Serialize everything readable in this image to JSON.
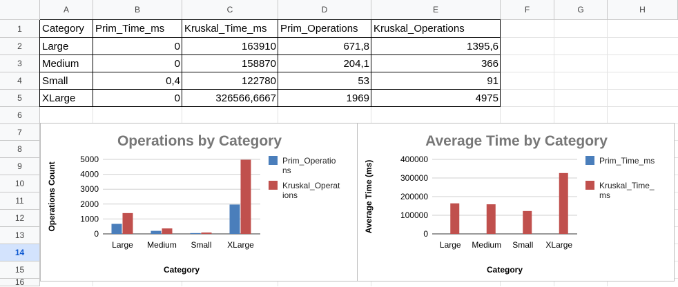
{
  "columns": [
    "A",
    "B",
    "C",
    "D",
    "E",
    "F",
    "G",
    "H"
  ],
  "rows": [
    "1",
    "2",
    "3",
    "4",
    "5",
    "6",
    "7",
    "8",
    "9",
    "10",
    "11",
    "12",
    "13",
    "14",
    "15",
    "16"
  ],
  "selected_row": "14",
  "table": {
    "header": [
      "Category",
      "Prim_Time_ms",
      "Kruskal_Time_ms",
      "Prim_Operations",
      "Kruskal_Operations"
    ],
    "rows": [
      [
        "Large",
        "0",
        "163910",
        "671,8",
        "1395,6"
      ],
      [
        "Medium",
        "0",
        "158870",
        "204,1",
        "366"
      ],
      [
        "Small",
        "0,4",
        "122780",
        "53",
        "91"
      ],
      [
        "XLarge",
        "0",
        "326566,6667",
        "1969",
        "4975"
      ]
    ]
  },
  "colors": {
    "prim": "#4a7ebb",
    "kruskal": "#c0504d",
    "selected_row_bg": "#d3e3fd"
  },
  "chart_data": [
    {
      "type": "bar",
      "title": "Operations by Category",
      "xlabel": "Category",
      "ylabel": "Operations Count",
      "categories": [
        "Large",
        "Medium",
        "Small",
        "XLarge"
      ],
      "series": [
        {
          "name": "Prim_Operations",
          "legend_lines": [
            "Prim_Operatio",
            "ns"
          ],
          "values": [
            671.8,
            204.1,
            53,
            1969
          ]
        },
        {
          "name": "Kruskal_Operations",
          "legend_lines": [
            "Kruskal_Operat",
            "ions"
          ],
          "values": [
            1395.6,
            366,
            91,
            4975
          ]
        }
      ],
      "yticks": [
        "0",
        "1000",
        "2000",
        "3000",
        "4000",
        "5000"
      ],
      "ylim": [
        0,
        5000
      ],
      "legend": "right"
    },
    {
      "type": "bar",
      "title": "Average Time by Category",
      "xlabel": "Category",
      "ylabel": "Average Time (ms)",
      "categories": [
        "Large",
        "Medium",
        "Small",
        "XLarge"
      ],
      "series": [
        {
          "name": "Prim_Time_ms",
          "legend_lines": [
            "Prim_Time_ms"
          ],
          "values": [
            0,
            0,
            0.4,
            0
          ]
        },
        {
          "name": "Kruskal_Time_ms",
          "legend_lines": [
            "Kruskal_Time_",
            "ms"
          ],
          "values": [
            163910,
            158870,
            122780,
            326566.6667
          ]
        }
      ],
      "yticks": [
        "0",
        "100000",
        "200000",
        "300000",
        "400000"
      ],
      "ylim": [
        0,
        400000
      ],
      "legend": "right"
    }
  ]
}
